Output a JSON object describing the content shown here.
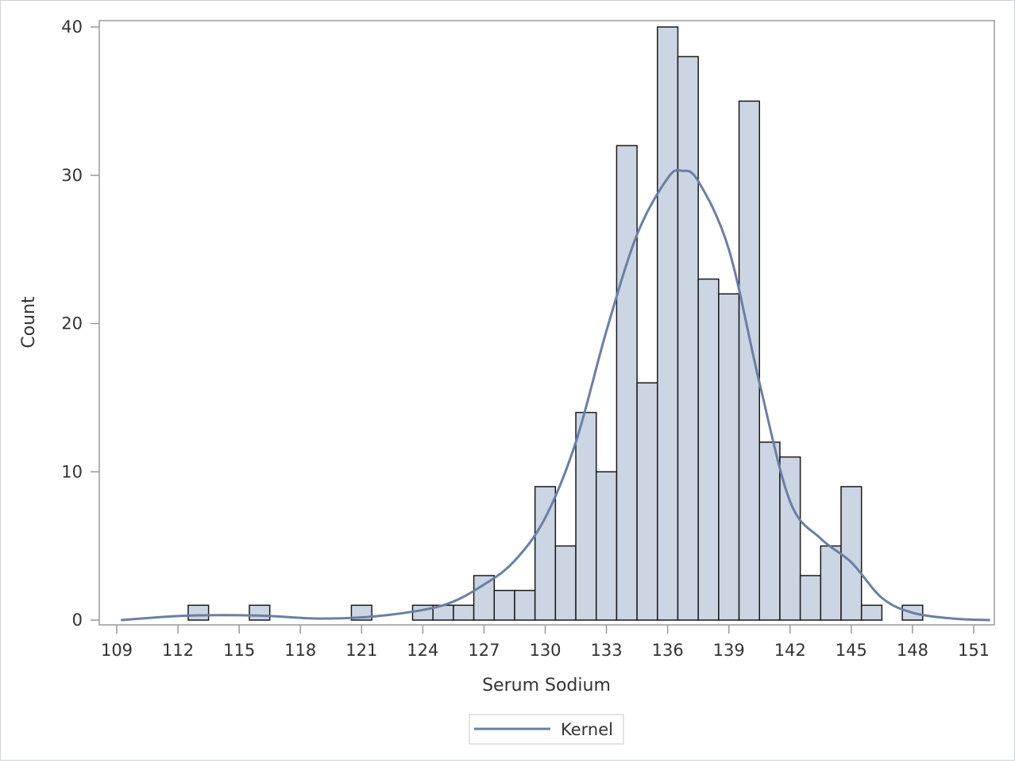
{
  "chart_data": {
    "type": "bar",
    "subtype": "histogram-with-kernel-density",
    "xlabel": "Serum Sodium",
    "ylabel": "Count",
    "xlim": [
      109,
      152
    ],
    "ylim": [
      0,
      41
    ],
    "x_ticks": [
      109,
      112,
      115,
      118,
      121,
      124,
      127,
      130,
      133,
      136,
      139,
      142,
      145,
      148,
      151
    ],
    "y_ticks": [
      0,
      10,
      20,
      30,
      40
    ],
    "bin_width": 1,
    "bins": [
      {
        "x": 113,
        "count": 1
      },
      {
        "x": 116,
        "count": 1
      },
      {
        "x": 121,
        "count": 1
      },
      {
        "x": 124,
        "count": 1
      },
      {
        "x": 125,
        "count": 1
      },
      {
        "x": 126,
        "count": 1
      },
      {
        "x": 127,
        "count": 3
      },
      {
        "x": 128,
        "count": 2
      },
      {
        "x": 129,
        "count": 2
      },
      {
        "x": 130,
        "count": 9
      },
      {
        "x": 131,
        "count": 5
      },
      {
        "x": 132,
        "count": 14
      },
      {
        "x": 133,
        "count": 10
      },
      {
        "x": 134,
        "count": 32
      },
      {
        "x": 135,
        "count": 16
      },
      {
        "x": 136,
        "count": 40
      },
      {
        "x": 137,
        "count": 38
      },
      {
        "x": 138,
        "count": 23
      },
      {
        "x": 139,
        "count": 22
      },
      {
        "x": 140,
        "count": 35
      },
      {
        "x": 141,
        "count": 12
      },
      {
        "x": 142,
        "count": 11
      },
      {
        "x": 143,
        "count": 3
      },
      {
        "x": 144,
        "count": 5
      },
      {
        "x": 145,
        "count": 9
      },
      {
        "x": 146,
        "count": 1
      },
      {
        "x": 148,
        "count": 1
      }
    ],
    "series": [
      {
        "name": "Kernel",
        "x": [
          109.2,
          112.5,
          116,
          119,
          122,
          125,
          127,
          128.5,
          130,
          131.5,
          133,
          134.5,
          136,
          136.7,
          137.5,
          139,
          140.5,
          142,
          143.5,
          145,
          146.5,
          148,
          150,
          151.8
        ],
        "values": [
          0,
          0.3,
          0.3,
          0.1,
          0.3,
          1.0,
          2.4,
          4.0,
          6.9,
          12.0,
          19.5,
          26.0,
          29.8,
          30.3,
          29.6,
          25.0,
          16.0,
          8.0,
          5.5,
          3.9,
          1.5,
          0.5,
          0.1,
          0
        ]
      }
    ],
    "legend": {
      "position": "bottom-center",
      "entries": [
        "Kernel"
      ]
    },
    "grid": false,
    "colors": {
      "bar_fill": "#ccd5e3",
      "bar_edge": "#1a1a1a",
      "kernel": "#6b7fa3",
      "axis": "#999999"
    }
  }
}
